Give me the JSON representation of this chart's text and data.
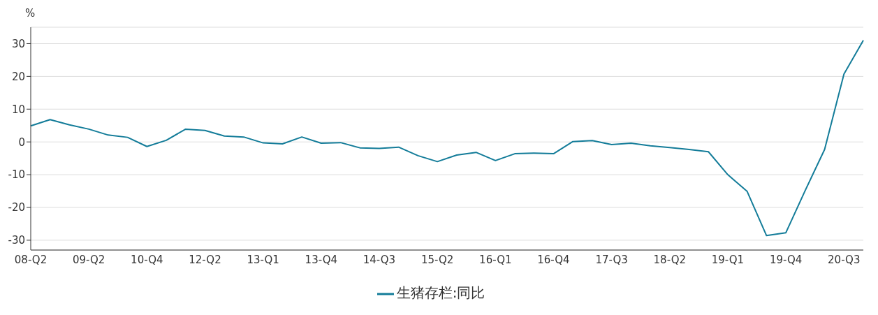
{
  "chart_data": {
    "type": "line",
    "ylabel": "%",
    "categories": [
      "08-Q2",
      null,
      null,
      "09-Q2",
      null,
      null,
      "10-Q4",
      null,
      null,
      "12-Q2",
      null,
      null,
      "13-Q1",
      null,
      null,
      "13-Q4",
      null,
      null,
      "14-Q3",
      null,
      null,
      "15-Q2",
      null,
      null,
      "16-Q1",
      null,
      null,
      "16-Q4",
      null,
      null,
      "17-Q3",
      null,
      null,
      "18-Q2",
      null,
      null,
      "19-Q1",
      null,
      null,
      "19-Q4",
      null,
      null,
      "20-Q3",
      null
    ],
    "series": [
      {
        "name": "生猪存栏:同比",
        "color": "#137c99",
        "values": [
          4.9,
          6.8,
          5.2,
          3.9,
          2.1,
          1.4,
          -1.4,
          0.5,
          3.9,
          3.5,
          1.8,
          1.5,
          -0.3,
          -0.6,
          1.5,
          -0.4,
          -0.2,
          -1.8,
          -2.0,
          -1.6,
          -4.2,
          -6.0,
          -4.0,
          -3.2,
          -5.7,
          -3.6,
          -3.4,
          -3.6,
          0.1,
          0.4,
          -0.8,
          -0.4,
          -1.2,
          -1.7,
          -2.3,
          -3.0,
          -10.0,
          -15.1,
          -28.6,
          -27.7,
          -14.8,
          -2.3,
          20.7,
          31.0
        ]
      }
    ],
    "ylim": [
      -33,
      35
    ],
    "yticks": [
      -30,
      -20,
      -10,
      0,
      10,
      20,
      30
    ],
    "grid": "y",
    "legend": "bottom",
    "marker": "none",
    "line_style": "solid"
  }
}
